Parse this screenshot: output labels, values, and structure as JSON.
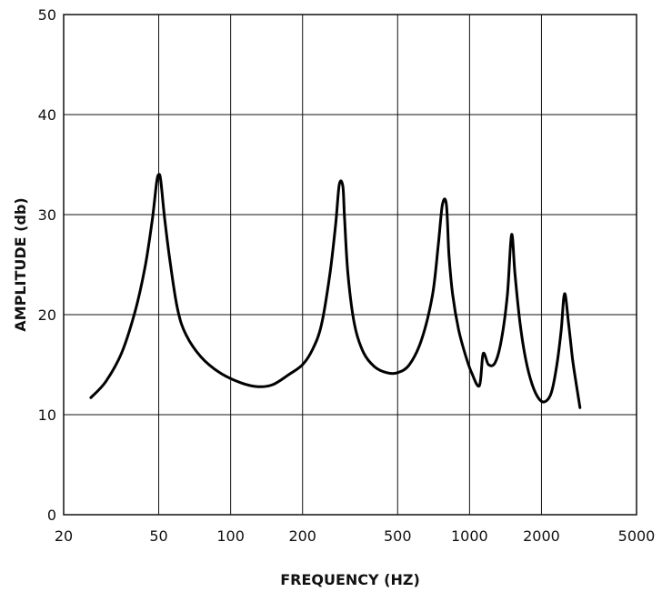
{
  "chart_data": {
    "type": "line",
    "title": "",
    "xlabel": "FREQUENCY (HZ)",
    "ylabel": "AMPLITUDE (db)",
    "x_scale": "log",
    "xlim": [
      20,
      5000
    ],
    "ylim": [
      0,
      50
    ],
    "x_ticks": [
      20,
      50,
      100,
      200,
      500,
      1000,
      2000,
      5000
    ],
    "x_tick_labels": [
      "20",
      "50",
      "100",
      "200",
      "500",
      "1000",
      "2000",
      "5000"
    ],
    "y_ticks": [
      0,
      10,
      20,
      30,
      40,
      50
    ],
    "y_tick_labels": [
      "0",
      "10",
      "20",
      "30",
      "40",
      "50"
    ],
    "grid": true,
    "legend": "none",
    "series": [
      {
        "color": "#000000",
        "points": [
          [
            26,
            11.7
          ],
          [
            30,
            13.3
          ],
          [
            35,
            16.2
          ],
          [
            40,
            20.5
          ],
          [
            44,
            25
          ],
          [
            47,
            29.5
          ],
          [
            49,
            33.2
          ],
          [
            50,
            34
          ],
          [
            51,
            33.4
          ],
          [
            53,
            29.5
          ],
          [
            56,
            25
          ],
          [
            60,
            20.5
          ],
          [
            65,
            18
          ],
          [
            75,
            15.8
          ],
          [
            90,
            14.2
          ],
          [
            110,
            13.2
          ],
          [
            130,
            12.8
          ],
          [
            150,
            13
          ],
          [
            175,
            14
          ],
          [
            200,
            15
          ],
          [
            220,
            16.5
          ],
          [
            240,
            19
          ],
          [
            260,
            24
          ],
          [
            275,
            29
          ],
          [
            285,
            33
          ],
          [
            295,
            32.8
          ],
          [
            300,
            29.5
          ],
          [
            310,
            24
          ],
          [
            330,
            19
          ],
          [
            360,
            16.2
          ],
          [
            400,
            14.8
          ],
          [
            450,
            14.2
          ],
          [
            500,
            14.2
          ],
          [
            560,
            15
          ],
          [
            630,
            17.5
          ],
          [
            700,
            22
          ],
          [
            740,
            27
          ],
          [
            770,
            31
          ],
          [
            800,
            31
          ],
          [
            820,
            26
          ],
          [
            850,
            22
          ],
          [
            900,
            18.5
          ],
          [
            960,
            16
          ],
          [
            1020,
            14.2
          ],
          [
            1100,
            12.9
          ],
          [
            1140,
            16.1
          ],
          [
            1200,
            15
          ],
          [
            1280,
            15.2
          ],
          [
            1360,
            17.5
          ],
          [
            1440,
            22
          ],
          [
            1500,
            28
          ],
          [
            1550,
            24
          ],
          [
            1630,
            19
          ],
          [
            1720,
            15.5
          ],
          [
            1830,
            13
          ],
          [
            1950,
            11.6
          ],
          [
            2070,
            11.3
          ],
          [
            2200,
            12.2
          ],
          [
            2320,
            15
          ],
          [
            2420,
            18.5
          ],
          [
            2500,
            22.1
          ],
          [
            2600,
            19
          ],
          [
            2700,
            15.5
          ],
          [
            2800,
            13
          ],
          [
            2900,
            10.7
          ]
        ]
      }
    ]
  }
}
